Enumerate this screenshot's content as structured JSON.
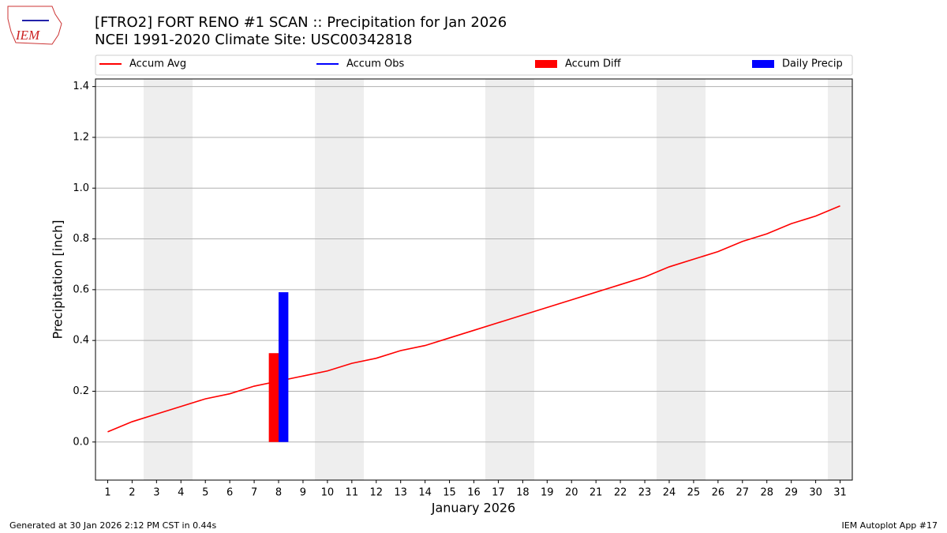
{
  "chart_data": {
    "type": "line",
    "title": "[FTRO2] FORT RENO #1 SCAN :: Precipitation for Jan 2026",
    "subtitle": "NCEI 1991-2020 Climate Site: USC00342818",
    "x_label": "January 2026",
    "y_label": "Precipitation [inch]",
    "x": [
      1,
      2,
      3,
      4,
      5,
      6,
      7,
      8,
      9,
      10,
      11,
      12,
      13,
      14,
      15,
      16,
      17,
      18,
      19,
      20,
      21,
      22,
      23,
      24,
      25,
      26,
      27,
      28,
      29,
      30,
      31
    ],
    "series": [
      {
        "name": "Accum Avg",
        "color": "#ff0000",
        "kind": "line",
        "values": [
          0.04,
          0.08,
          0.11,
          0.14,
          0.17,
          0.19,
          0.22,
          0.24,
          0.26,
          0.28,
          0.31,
          0.33,
          0.36,
          0.38,
          0.41,
          0.44,
          0.47,
          0.5,
          0.53,
          0.56,
          0.59,
          0.62,
          0.65,
          0.69,
          0.72,
          0.75,
          0.79,
          0.82,
          0.86,
          0.89,
          0.93
        ]
      },
      {
        "name": "Accum Obs",
        "color": "#0000ff",
        "kind": "line",
        "values": [
          null,
          null,
          null,
          null,
          null,
          null,
          null,
          0.59,
          null,
          null,
          null,
          null,
          null,
          null,
          null,
          null,
          null,
          null,
          null,
          null,
          null,
          null,
          null,
          null,
          null,
          null,
          null,
          null,
          null,
          null,
          null
        ]
      },
      {
        "name": "Accum Diff",
        "color": "#ff0000",
        "kind": "bar",
        "values": [
          null,
          null,
          null,
          null,
          null,
          null,
          null,
          0.35,
          null,
          null,
          null,
          null,
          null,
          null,
          null,
          null,
          null,
          null,
          null,
          null,
          null,
          null,
          null,
          null,
          null,
          null,
          null,
          null,
          null,
          null,
          null
        ]
      },
      {
        "name": "Daily Precip",
        "color": "#0000ff",
        "kind": "bar",
        "values": [
          null,
          null,
          null,
          null,
          null,
          null,
          null,
          0.59,
          null,
          null,
          null,
          null,
          null,
          null,
          null,
          null,
          null,
          null,
          null,
          null,
          null,
          null,
          null,
          null,
          null,
          null,
          null,
          null,
          null,
          null,
          null
        ]
      }
    ],
    "xlim": [
      0.5,
      31.5
    ],
    "xticks": [
      1,
      2,
      3,
      4,
      5,
      6,
      7,
      8,
      9,
      10,
      11,
      12,
      13,
      14,
      15,
      16,
      17,
      18,
      19,
      20,
      21,
      22,
      23,
      24,
      25,
      26,
      27,
      28,
      29,
      30,
      31
    ],
    "ylim": [
      -0.15,
      1.43
    ],
    "yticks": [
      {
        "value": 0,
        "label": "0.0"
      },
      {
        "value": 0.2,
        "label": "0.2"
      },
      {
        "value": 0.4,
        "label": "0.4"
      },
      {
        "value": 0.6,
        "label": "0.6"
      },
      {
        "value": 0.8,
        "label": "0.8"
      },
      {
        "value": 1,
        "label": "1.0"
      },
      {
        "value": 1.2,
        "label": "1.2"
      },
      {
        "value": 1.4,
        "label": "1.4"
      }
    ],
    "grid": true,
    "legend": "top",
    "footer_left": "Generated at 30 Jan 2026 2:12 PM CST in 0.44s",
    "footer_right": "IEM Autoplot App #17",
    "logo": "IEM"
  }
}
